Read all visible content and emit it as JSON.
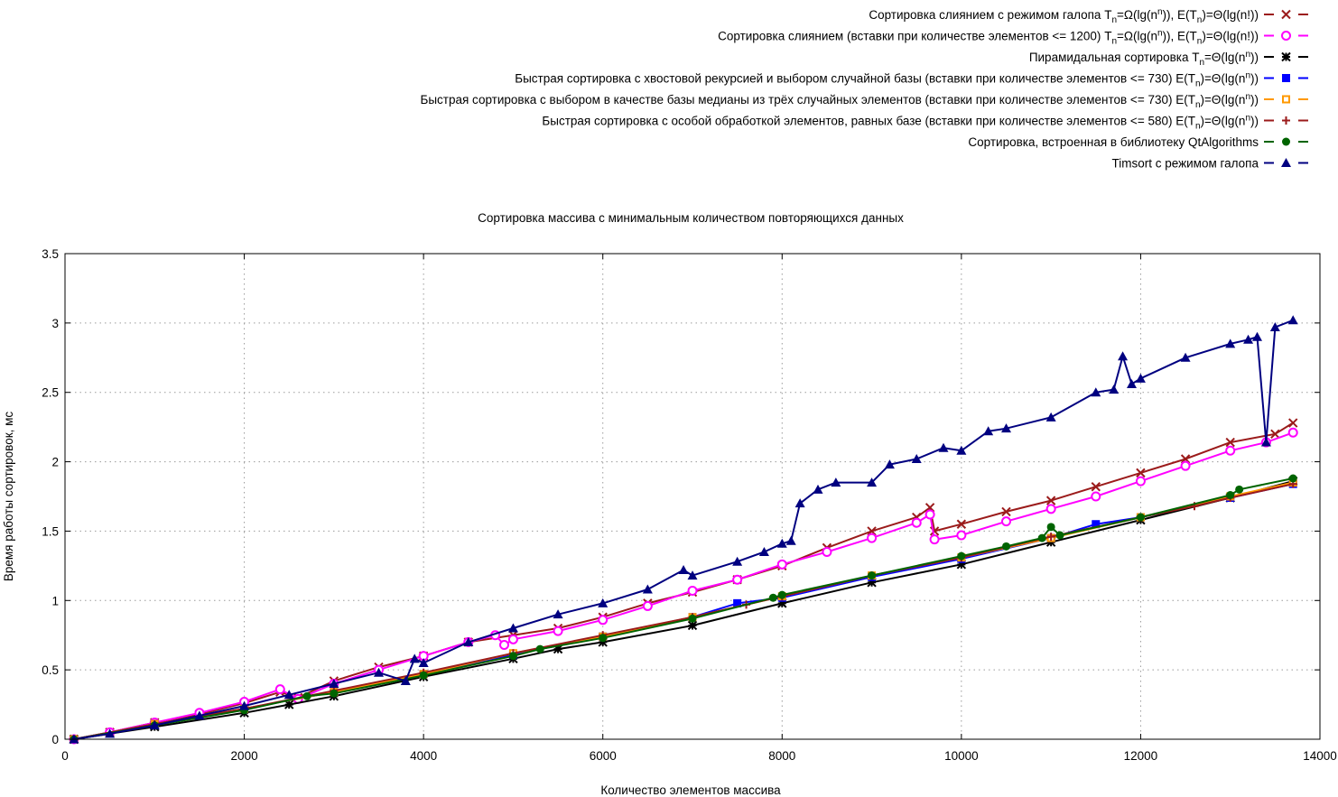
{
  "chart_data": {
    "type": "line",
    "title": "Сортировка массива с минимальным количеством повторяющихся данных",
    "xlabel": "Количество элементов массива",
    "ylabel": "Время работы сортировок, мс",
    "xlim": [
      0,
      14000
    ],
    "ylim": [
      0,
      3.5
    ],
    "xticks": [
      "0",
      "2000",
      "4000",
      "6000",
      "8000",
      "10000",
      "12000",
      "14000"
    ],
    "yticks": [
      "0",
      "0.5",
      "1",
      "1.5",
      "2",
      "2.5",
      "3",
      "3.5"
    ],
    "grid": true,
    "legend_position": "top-right",
    "series": [
      {
        "name": "Сортировка слиянием с режимом галопа",
        "complexity": {
          "a": "T",
          "asub": "n",
          "b": "=Ω(lg(n",
          "bsup": "n",
          "c": ")), E(T",
          "csub": "n",
          "d": ")=Θ(lg(n!))",
          "dsup": ""
        },
        "color": "#9b1b1b",
        "marker": "x",
        "x": [
          100,
          500,
          1000,
          1500,
          2000,
          2400,
          2600,
          3000,
          3500,
          4000,
          4500,
          5000,
          5500,
          6000,
          6500,
          7000,
          7500,
          8000,
          8500,
          9000,
          9500,
          9650,
          9700,
          10000,
          10500,
          11000,
          11500,
          12000,
          12500,
          13000,
          13500,
          13700
        ],
        "y": [
          0.0,
          0.05,
          0.12,
          0.18,
          0.26,
          0.34,
          0.3,
          0.42,
          0.52,
          0.6,
          0.7,
          0.75,
          0.8,
          0.88,
          0.98,
          1.06,
          1.15,
          1.25,
          1.38,
          1.5,
          1.6,
          1.67,
          1.5,
          1.55,
          1.64,
          1.72,
          1.82,
          1.92,
          2.02,
          2.14,
          2.2,
          2.28
        ]
      },
      {
        "name": "Сортировка слиянием (вставки при количестве элементов <= 1200)",
        "complexity": {
          "a": "T",
          "asub": "n",
          "b": "=Ω(lg(n",
          "bsup": "n",
          "c": ")), E(T",
          "csub": "n",
          "d": ")=Θ(lg(n!))",
          "dsup": ""
        },
        "color": "#ff00ff",
        "marker": "o",
        "x": [
          100,
          500,
          1000,
          1500,
          2000,
          2400,
          2600,
          3000,
          3500,
          4000,
          4500,
          4800,
          4900,
          5000,
          5500,
          6000,
          6500,
          7000,
          7500,
          8000,
          8500,
          9000,
          9500,
          9650,
          9700,
          10000,
          10500,
          11000,
          11500,
          12000,
          12500,
          13000,
          13400,
          13700
        ],
        "y": [
          0.0,
          0.05,
          0.12,
          0.19,
          0.27,
          0.36,
          0.29,
          0.4,
          0.5,
          0.6,
          0.7,
          0.75,
          0.68,
          0.72,
          0.78,
          0.86,
          0.96,
          1.07,
          1.15,
          1.26,
          1.35,
          1.45,
          1.56,
          1.62,
          1.44,
          1.47,
          1.57,
          1.66,
          1.75,
          1.86,
          1.97,
          2.08,
          2.14,
          2.21
        ]
      },
      {
        "name": "Пирамидальная сортировка",
        "complexity": {
          "a": "T",
          "asub": "n",
          "b": "=Θ(lg(n",
          "bsup": "n",
          "c": "))",
          "csub": "",
          "d": "",
          "dsup": ""
        },
        "color": "#000000",
        "marker": "star",
        "x": [
          100,
          1000,
          2000,
          2500,
          3000,
          4000,
          5000,
          5500,
          6000,
          7000,
          8000,
          9000,
          10000,
          11000,
          12000,
          13000,
          13700
        ],
        "y": [
          0.0,
          0.09,
          0.19,
          0.25,
          0.31,
          0.45,
          0.58,
          0.65,
          0.7,
          0.82,
          0.98,
          1.13,
          1.26,
          1.42,
          1.58,
          1.74,
          1.86
        ]
      },
      {
        "name": "Быстрая сортировка с хвостовой рекурсией и выбором случайной базы (вставки при количестве элементов <= 730)",
        "complexity": {
          "a": "E(T",
          "asub": "n",
          "b": ")=Θ(lg(n",
          "bsup": "n",
          "c": "))",
          "csub": "",
          "d": "",
          "dsup": ""
        },
        "color": "#0000ff",
        "marker": "filled-square",
        "x": [
          100,
          1000,
          2000,
          3000,
          4000,
          5000,
          6000,
          7000,
          7500,
          8000,
          9000,
          10000,
          11000,
          11500,
          12000,
          13000,
          13700
        ],
        "y": [
          0.0,
          0.11,
          0.22,
          0.34,
          0.47,
          0.61,
          0.74,
          0.88,
          0.98,
          1.02,
          1.17,
          1.3,
          1.45,
          1.55,
          1.6,
          1.74,
          1.84
        ]
      },
      {
        "name": "Быстрая сортировка с выбором в качестве базы медианы из трёх случайных элементов (вставки при количестве элементов <= 730)",
        "complexity": {
          "a": "E(T",
          "asub": "n",
          "b": ")=Θ(lg(n",
          "bsup": "n",
          "c": "))",
          "csub": "",
          "d": "",
          "dsup": ""
        },
        "color": "#ff9900",
        "marker": "open-square",
        "x": [
          100,
          1000,
          2000,
          3000,
          4000,
          5000,
          6000,
          7000,
          8000,
          9000,
          10000,
          11000,
          12000,
          13000,
          13700
        ],
        "y": [
          0.0,
          0.11,
          0.22,
          0.34,
          0.47,
          0.62,
          0.74,
          0.88,
          1.03,
          1.18,
          1.31,
          1.45,
          1.6,
          1.75,
          1.85
        ]
      },
      {
        "name": "Быстрая сортировка с особой обработкой элементов, равных базе (вставки при количестве элементов <= 580)",
        "complexity": {
          "a": "E(T",
          "asub": "n",
          "b": ")=Θ(lg(n",
          "bsup": "n",
          "c": "))",
          "csub": "",
          "d": "",
          "dsup": ""
        },
        "color": "#9b1b1b",
        "marker": "+",
        "x": [
          100,
          1000,
          2000,
          3000,
          4000,
          5000,
          6000,
          7000,
          7600,
          8000,
          9000,
          10000,
          11000,
          12000,
          12600,
          13000,
          13700
        ],
        "y": [
          0.0,
          0.11,
          0.22,
          0.35,
          0.48,
          0.62,
          0.75,
          0.88,
          0.97,
          1.03,
          1.18,
          1.31,
          1.46,
          1.6,
          1.68,
          1.74,
          1.84
        ]
      },
      {
        "name": "Сортировка, встроенная в библиотеку QtAlgorithms",
        "complexity": {
          "a": "",
          "asub": "",
          "b": "",
          "bsup": "",
          "c": "",
          "csub": "",
          "d": "",
          "dsup": ""
        },
        "color": "#006400",
        "marker": "filled-circle",
        "x": [
          100,
          1000,
          2000,
          2700,
          3000,
          4000,
          5000,
          5300,
          6000,
          7000,
          7900,
          8000,
          9000,
          10000,
          10500,
          10900,
          11000,
          11100,
          12000,
          13000,
          13100,
          13700
        ],
        "y": [
          0.0,
          0.1,
          0.21,
          0.31,
          0.33,
          0.46,
          0.6,
          0.65,
          0.73,
          0.87,
          1.02,
          1.04,
          1.18,
          1.32,
          1.39,
          1.45,
          1.53,
          1.47,
          1.6,
          1.76,
          1.8,
          1.88
        ]
      },
      {
        "name": "Timsort с режимом галопа",
        "complexity": {
          "a": "",
          "asub": "",
          "b": "",
          "bsup": "",
          "c": "",
          "csub": "",
          "d": "",
          "dsup": ""
        },
        "color": "#000080",
        "marker": "filled-triangle",
        "x": [
          100,
          500,
          1000,
          1500,
          2000,
          2500,
          3000,
          3500,
          3800,
          3900,
          4000,
          4500,
          5000,
          5500,
          6000,
          6500,
          6900,
          7000,
          7500,
          7800,
          8000,
          8100,
          8200,
          8400,
          8600,
          9000,
          9200,
          9500,
          9800,
          10000,
          10300,
          10500,
          11000,
          11500,
          11700,
          11800,
          11900,
          12000,
          12500,
          13000,
          13200,
          13300,
          13400,
          13500,
          13700
        ],
        "y": [
          0.0,
          0.04,
          0.1,
          0.17,
          0.24,
          0.32,
          0.4,
          0.48,
          0.42,
          0.58,
          0.55,
          0.7,
          0.8,
          0.9,
          0.98,
          1.08,
          1.22,
          1.18,
          1.28,
          1.35,
          1.41,
          1.43,
          1.7,
          1.8,
          1.85,
          1.85,
          1.98,
          2.02,
          2.1,
          2.08,
          2.22,
          2.24,
          2.32,
          2.5,
          2.52,
          2.76,
          2.56,
          2.6,
          2.75,
          2.85,
          2.88,
          2.9,
          2.14,
          2.97,
          3.02
        ]
      }
    ]
  }
}
